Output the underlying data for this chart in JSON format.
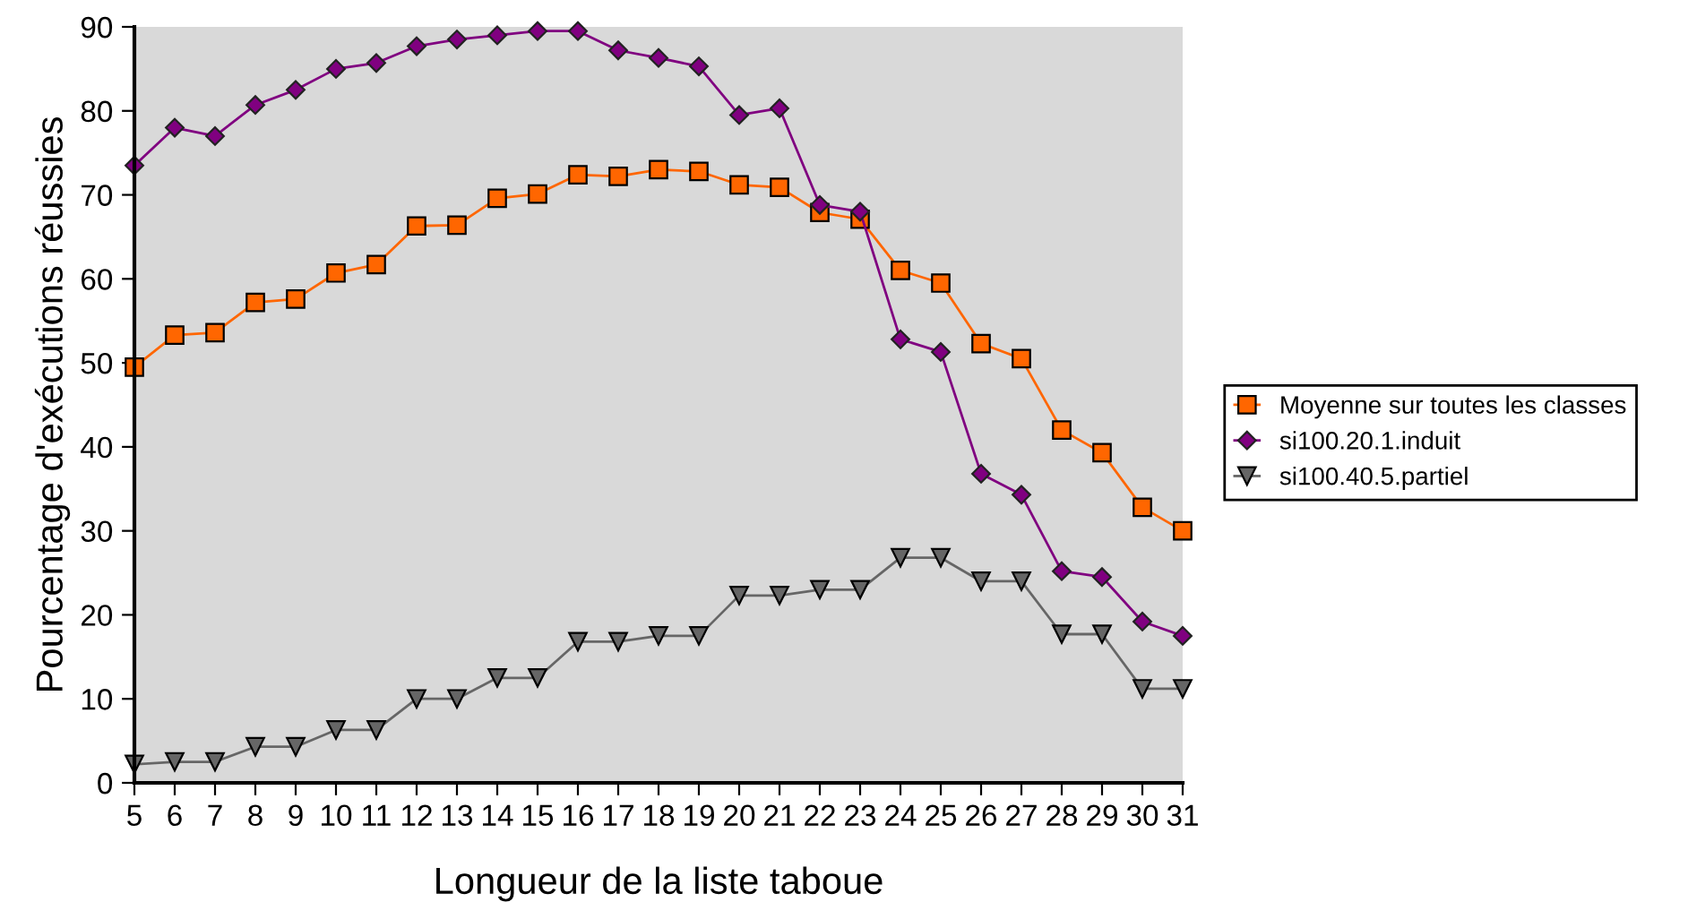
{
  "chart_data": {
    "type": "line",
    "xlabel": "Longueur de la liste taboue",
    "ylabel": "Pourcentage d'exécutions réussies",
    "x": [
      5,
      6,
      7,
      8,
      9,
      10,
      11,
      12,
      13,
      14,
      15,
      16,
      17,
      18,
      19,
      20,
      21,
      22,
      23,
      24,
      25,
      26,
      27,
      28,
      29,
      30,
      31
    ],
    "xlim": [
      5,
      31
    ],
    "xticks": [
      5,
      6,
      7,
      8,
      9,
      10,
      11,
      12,
      13,
      14,
      15,
      16,
      17,
      18,
      19,
      20,
      21,
      22,
      23,
      24,
      25,
      26,
      27,
      28,
      29,
      30,
      31
    ],
    "ylim": [
      0,
      90
    ],
    "yticks": [
      0,
      10,
      20,
      30,
      40,
      50,
      60,
      70,
      80,
      90
    ],
    "grid": false,
    "legend": "right",
    "series": [
      {
        "name": "Moyenne sur toutes les classes",
        "color": "#ff6600",
        "marker": "square",
        "values": [
          49.5,
          53.3,
          53.6,
          57.2,
          57.6,
          60.7,
          61.7,
          66.3,
          66.4,
          69.6,
          70.1,
          72.4,
          72.2,
          73,
          72.8,
          71.2,
          70.9,
          67.9,
          67.1,
          61,
          59.5,
          52.3,
          50.5,
          42,
          39.3,
          32.8,
          30
        ]
      },
      {
        "name": "si100.20.1.induit",
        "color": "#800080",
        "marker": "diamond",
        "values": [
          73.5,
          78,
          77,
          80.7,
          82.5,
          85,
          85.7,
          87.7,
          88.5,
          89,
          89.5,
          89.5,
          87.2,
          86.3,
          85.3,
          79.5,
          80.3,
          68.8,
          68,
          52.8,
          51.3,
          36.8,
          34.3,
          25.2,
          24.5,
          19.2,
          17.5
        ]
      },
      {
        "name": "si100.40.5.partiel",
        "color": "#666666",
        "marker": "triangle",
        "values": [
          2.2,
          2.5,
          2.5,
          4.3,
          4.3,
          6.3,
          6.3,
          10,
          10,
          12.5,
          12.5,
          16.8,
          16.8,
          17.5,
          17.5,
          22.3,
          22.3,
          23,
          23,
          26.8,
          26.8,
          24,
          24,
          17.7,
          17.7,
          11.2,
          11.2
        ]
      }
    ]
  }
}
